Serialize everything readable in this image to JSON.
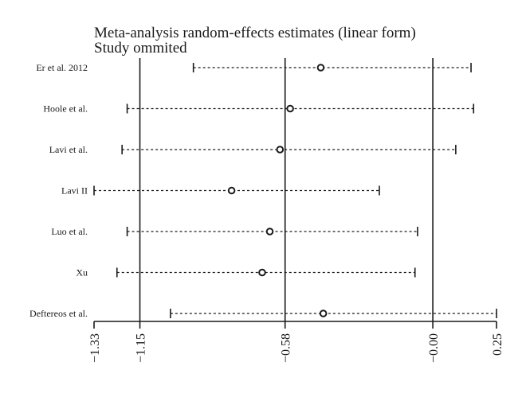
{
  "chart_data": {
    "type": "forest",
    "title": "Meta-analysis random-effects estimates (linear form)",
    "subtitle": "Study ommited",
    "xlim": [
      -1.33,
      0.25
    ],
    "ticks": [
      {
        "value": -1.33,
        "label": "−1.33"
      },
      {
        "value": -1.15,
        "label": "−1.15"
      },
      {
        "value": -0.58,
        "label": "−0.58"
      },
      {
        "value": -0.0,
        "label": "−0.00"
      },
      {
        "value": 0.25,
        "label": "0.25"
      }
    ],
    "reference_lines": [
      -1.15,
      -0.58,
      0.0
    ],
    "studies": [
      {
        "label": "Er et al. 2012",
        "estimate": -0.44,
        "lower": -0.94,
        "upper": 0.15
      },
      {
        "label": "Hoole et al.",
        "estimate": -0.56,
        "lower": -1.2,
        "upper": 0.16
      },
      {
        "label": "Lavi et al.",
        "estimate": -0.6,
        "lower": -1.22,
        "upper": 0.09
      },
      {
        "label": "Lavi II",
        "estimate": -0.79,
        "lower": -1.33,
        "upper": -0.21
      },
      {
        "label": "Luo et al.",
        "estimate": -0.64,
        "lower": -1.2,
        "upper": -0.06
      },
      {
        "label": "Xu",
        "estimate": -0.67,
        "lower": -1.24,
        "upper": -0.07
      },
      {
        "label": "Deftereos et al.",
        "estimate": -0.43,
        "lower": -1.03,
        "upper": 0.25
      }
    ]
  }
}
